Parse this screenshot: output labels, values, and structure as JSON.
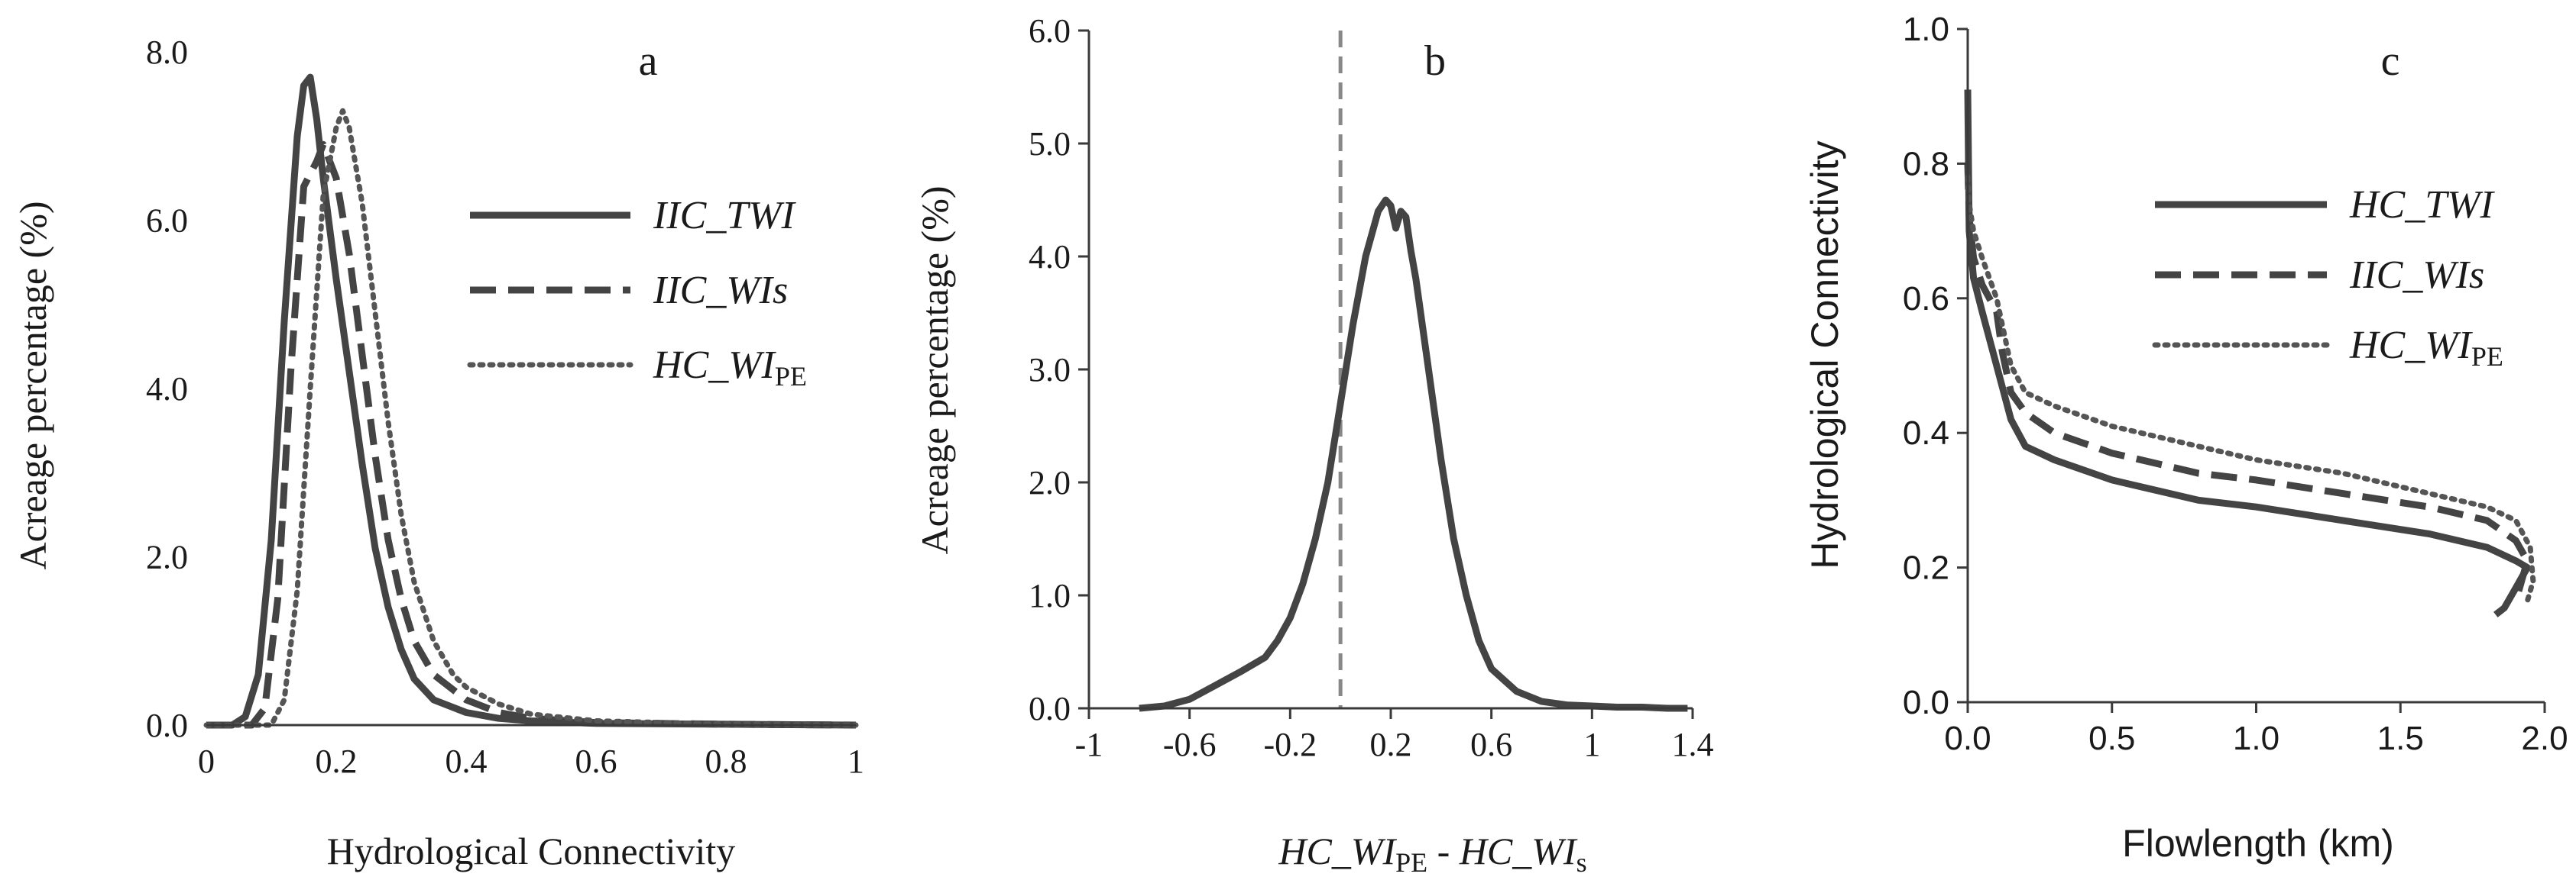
{
  "chart_data": [
    {
      "panel": "a",
      "type": "line",
      "title": "a",
      "xlabel": "Hydrological Connectivity",
      "ylabel": "Acreage percentage (%)",
      "xlim": [
        0,
        1
      ],
      "ylim": [
        0,
        8
      ],
      "xticks": [
        "0",
        "0.2",
        "0.4",
        "0.6",
        "0.8",
        "1"
      ],
      "yticks": [
        "0.0",
        "2.0",
        "4.0",
        "6.0",
        "8.0"
      ],
      "legend": {
        "position": "right",
        "entries": [
          {
            "label": "IIC_TWI",
            "sub": "",
            "style": "solid"
          },
          {
            "label": "IIC_WIs",
            "sub": "",
            "style": "dashed"
          },
          {
            "label": "HC_WI",
            "sub": "PE",
            "style": "dotted"
          }
        ]
      },
      "series": [
        {
          "name": "IIC_TWI",
          "style": "solid",
          "x": [
            0,
            0.04,
            0.06,
            0.08,
            0.1,
            0.12,
            0.14,
            0.15,
            0.16,
            0.17,
            0.18,
            0.2,
            0.22,
            0.24,
            0.26,
            0.28,
            0.3,
            0.32,
            0.35,
            0.4,
            0.45,
            0.5,
            0.6,
            0.8,
            1.0
          ],
          "y": [
            0,
            0,
            0.1,
            0.6,
            2.2,
            4.8,
            7.0,
            7.6,
            7.7,
            7.2,
            6.5,
            5.3,
            4.2,
            3.1,
            2.1,
            1.4,
            0.9,
            0.55,
            0.3,
            0.15,
            0.08,
            0.05,
            0.02,
            0.01,
            0
          ]
        },
        {
          "name": "IIC_WIs",
          "style": "dashed",
          "x": [
            0,
            0.07,
            0.09,
            0.11,
            0.13,
            0.15,
            0.17,
            0.18,
            0.2,
            0.22,
            0.24,
            0.26,
            0.28,
            0.3,
            0.32,
            0.35,
            0.4,
            0.45,
            0.5,
            0.6,
            0.8,
            1.0
          ],
          "y": [
            0,
            0,
            0.2,
            1.5,
            4.2,
            6.4,
            6.7,
            6.9,
            6.5,
            5.6,
            4.4,
            3.2,
            2.2,
            1.5,
            1.0,
            0.6,
            0.3,
            0.15,
            0.08,
            0.03,
            0.01,
            0
          ]
        },
        {
          "name": "HC_WIPE",
          "style": "dotted",
          "x": [
            0,
            0.1,
            0.12,
            0.14,
            0.16,
            0.18,
            0.2,
            0.21,
            0.22,
            0.24,
            0.26,
            0.28,
            0.3,
            0.32,
            0.35,
            0.38,
            0.4,
            0.45,
            0.5,
            0.6,
            0.8,
            1.0
          ],
          "y": [
            0,
            0,
            0.3,
            1.6,
            4.0,
            6.3,
            7.1,
            7.3,
            7.1,
            6.2,
            4.9,
            3.6,
            2.5,
            1.7,
            1.0,
            0.6,
            0.45,
            0.25,
            0.13,
            0.05,
            0.01,
            0
          ]
        }
      ]
    },
    {
      "panel": "b",
      "type": "line",
      "title": "b",
      "xlabel": "HC_WIPE - HC_WIs",
      "ylabel": "Acreage percentage (%)",
      "xlim": [
        -1,
        1.4
      ],
      "ylim": [
        0,
        6
      ],
      "xticks": [
        "-1",
        "-0.6",
        "-0.2",
        "0.2",
        "0.6",
        "1",
        "1.4"
      ],
      "yticks": [
        "0.0",
        "1.0",
        "2.0",
        "3.0",
        "4.0",
        "5.0",
        "6.0"
      ],
      "reference_line": {
        "x": 0,
        "style": "dashed"
      },
      "series": [
        {
          "name": "HC_WIPE - HC_WIs",
          "style": "solid",
          "x": [
            -0.8,
            -0.7,
            -0.6,
            -0.5,
            -0.4,
            -0.3,
            -0.25,
            -0.2,
            -0.15,
            -0.1,
            -0.05,
            0,
            0.05,
            0.1,
            0.15,
            0.18,
            0.2,
            0.22,
            0.24,
            0.26,
            0.28,
            0.3,
            0.35,
            0.4,
            0.45,
            0.5,
            0.55,
            0.6,
            0.65,
            0.7,
            0.8,
            0.9,
            1.0,
            1.1,
            1.2,
            1.3,
            1.38
          ],
          "y": [
            0,
            0.02,
            0.08,
            0.2,
            0.32,
            0.45,
            0.6,
            0.8,
            1.1,
            1.5,
            2.0,
            2.7,
            3.4,
            4.0,
            4.4,
            4.5,
            4.45,
            4.25,
            4.4,
            4.35,
            4.05,
            3.8,
            3.0,
            2.2,
            1.5,
            1.0,
            0.6,
            0.35,
            0.25,
            0.15,
            0.06,
            0.03,
            0.02,
            0.01,
            0.01,
            0,
            0
          ]
        }
      ]
    },
    {
      "panel": "c",
      "type": "line",
      "title": "c",
      "xlabel": "Flowlength (km)",
      "ylabel": "Hydrological Connectivity",
      "xlim": [
        0,
        2
      ],
      "ylim": [
        0,
        1
      ],
      "xticks": [
        "0.0",
        "0.5",
        "1.0",
        "1.5",
        "2.0"
      ],
      "yticks": [
        "0.0",
        "0.2",
        "0.4",
        "0.6",
        "0.8",
        "1.0"
      ],
      "legend": {
        "position": "top-right",
        "entries": [
          {
            "label": "HC_TWI",
            "sub": "",
            "style": "solid"
          },
          {
            "label": "IIC_WIs",
            "sub": "",
            "style": "dashed"
          },
          {
            "label": "HC_WI",
            "sub": "PE",
            "style": "dotted"
          }
        ]
      },
      "series": [
        {
          "name": "HC_TWI",
          "style": "solid",
          "x": [
            0,
            0.005,
            0.02,
            0.05,
            0.1,
            0.15,
            0.2,
            0.3,
            0.5,
            0.8,
            1.0,
            1.3,
            1.6,
            1.8,
            1.9,
            1.94,
            1.9,
            1.86,
            1.83
          ],
          "y": [
            0.91,
            0.7,
            0.63,
            0.58,
            0.5,
            0.42,
            0.38,
            0.36,
            0.33,
            0.3,
            0.29,
            0.27,
            0.25,
            0.23,
            0.21,
            0.2,
            0.17,
            0.14,
            0.13
          ]
        },
        {
          "name": "IIC_WIs",
          "style": "dashed",
          "x": [
            0,
            0.005,
            0.02,
            0.05,
            0.1,
            0.12,
            0.15,
            0.2,
            0.3,
            0.5,
            0.8,
            1.0,
            1.3,
            1.6,
            1.8,
            1.9,
            1.94,
            1.92,
            1.9
          ],
          "y": [
            0.8,
            0.72,
            0.66,
            0.62,
            0.58,
            0.52,
            0.46,
            0.43,
            0.4,
            0.37,
            0.34,
            0.33,
            0.31,
            0.29,
            0.27,
            0.24,
            0.21,
            0.18,
            0.15
          ]
        },
        {
          "name": "HC_WIPE",
          "style": "dotted",
          "x": [
            0,
            0.005,
            0.02,
            0.05,
            0.1,
            0.15,
            0.2,
            0.3,
            0.5,
            0.8,
            1.0,
            1.3,
            1.6,
            1.8,
            1.9,
            1.95,
            1.96,
            1.94
          ],
          "y": [
            0.78,
            0.74,
            0.7,
            0.66,
            0.6,
            0.5,
            0.46,
            0.44,
            0.41,
            0.38,
            0.36,
            0.34,
            0.31,
            0.29,
            0.27,
            0.23,
            0.18,
            0.15
          ]
        }
      ]
    }
  ]
}
